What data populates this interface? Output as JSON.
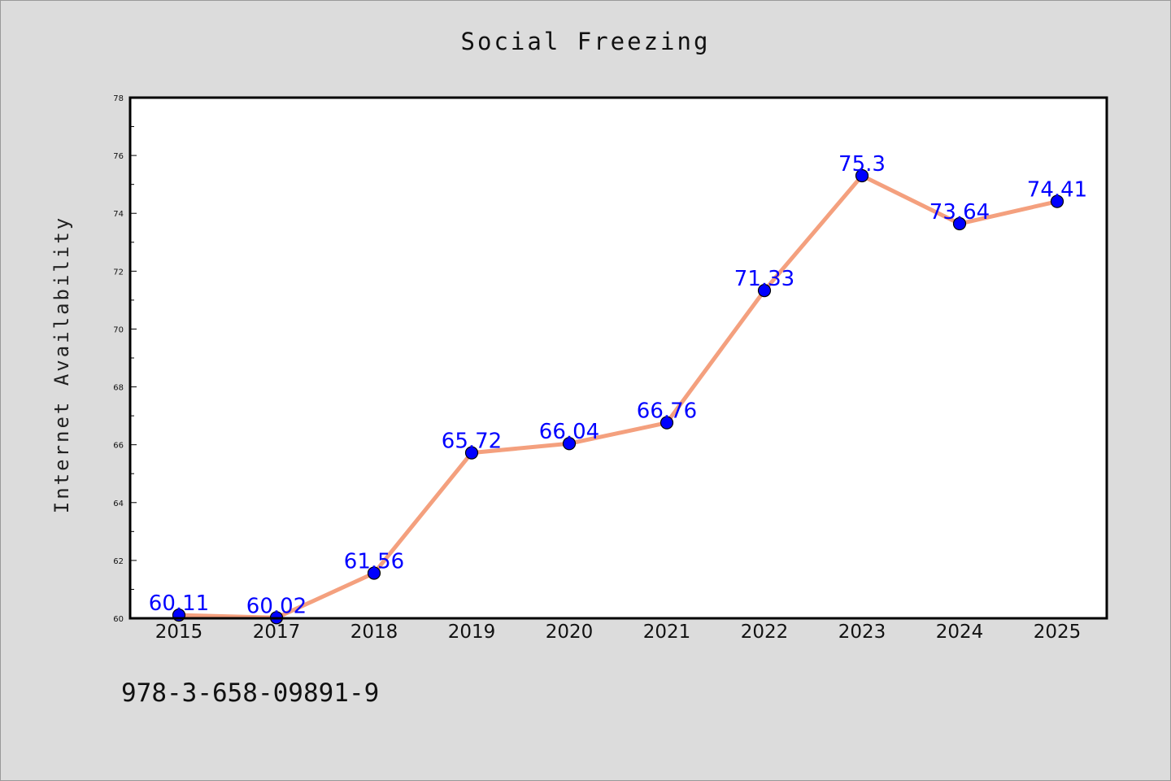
{
  "chart_data": {
    "type": "line",
    "title": "Social Freezing",
    "xlabel": "",
    "ylabel": "Internet Availability",
    "categories": [
      "2015",
      "2017",
      "2018",
      "2019",
      "2020",
      "2021",
      "2022",
      "2023",
      "2024",
      "2025"
    ],
    "series": [
      {
        "values": [
          60.11,
          60.02,
          61.56,
          65.72,
          66.04,
          66.76,
          71.33,
          75.3,
          73.64,
          74.41
        ],
        "labels": [
          "60.11",
          "60.02",
          "61.56",
          "65.72",
          "66.04",
          "66.76",
          "71.33",
          "75.3",
          "73.64",
          "74.41"
        ]
      }
    ],
    "ylim": [
      60,
      78
    ],
    "yticks": [
      60,
      62,
      64,
      66,
      68,
      70,
      72,
      74,
      76,
      78
    ],
    "grid": false,
    "colors": {
      "line": "#f4a07e",
      "marker": "#0000ff",
      "label": "#0000ff"
    }
  },
  "footer": {
    "code": "978-3-658-09891-9"
  }
}
